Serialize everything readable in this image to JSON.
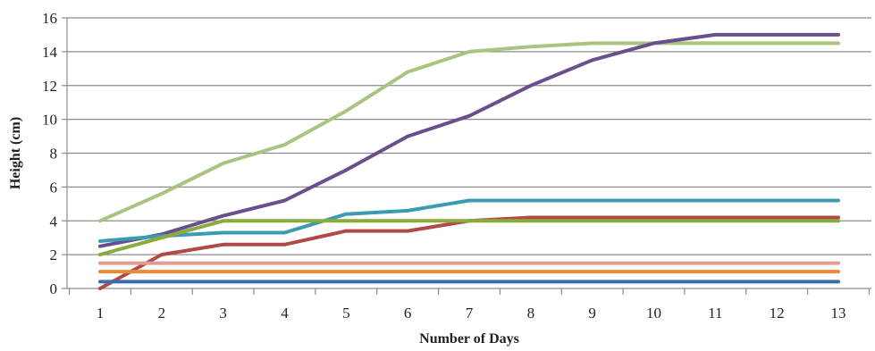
{
  "chart_data": {
    "type": "line",
    "title": "",
    "xlabel": "Number of Days",
    "ylabel": "Height (cm)",
    "xlim": [
      1,
      13
    ],
    "ylim": [
      0,
      16
    ],
    "x_ticks": [
      "1",
      "2",
      "3",
      "4",
      "5",
      "6",
      "7",
      "8",
      "9",
      "10",
      "11",
      "12",
      "13"
    ],
    "y_ticks": [
      "0",
      "2",
      "4",
      "6",
      "8",
      "10",
      "12",
      "14",
      "16"
    ],
    "grid": "horizontal",
    "legend": "none",
    "x": [
      1,
      2,
      3,
      4,
      5,
      6,
      7,
      8,
      9,
      10,
      11,
      12,
      13
    ],
    "series": [
      {
        "color": "#a9c47f",
        "values": [
          4.0,
          5.6,
          7.4,
          8.5,
          10.5,
          12.8,
          14.0,
          14.3,
          14.5,
          14.5,
          14.5,
          14.5,
          14.5
        ]
      },
      {
        "color": "#6a4f8f",
        "values": [
          2.5,
          3.2,
          4.3,
          5.2,
          7.0,
          9.0,
          10.2,
          12.0,
          13.5,
          14.5,
          15.0,
          15.0,
          15.0
        ]
      },
      {
        "color": "#3b9bb0",
        "values": [
          2.8,
          3.1,
          3.3,
          3.3,
          4.4,
          4.6,
          5.2,
          5.2,
          5.2,
          5.2,
          5.2,
          5.2,
          5.2
        ]
      },
      {
        "color": "#b04a46",
        "values": [
          0.0,
          2.0,
          2.6,
          2.6,
          3.4,
          3.4,
          4.0,
          4.2,
          4.2,
          4.2,
          4.2,
          4.2,
          4.2
        ]
      },
      {
        "color": "#8aab3e",
        "values": [
          2.0,
          3.0,
          4.0,
          4.0,
          4.0,
          4.0,
          4.0,
          4.0,
          4.0,
          4.0,
          4.0,
          4.0,
          4.0
        ]
      },
      {
        "color": "#e29a94",
        "values": [
          1.5,
          1.5,
          1.5,
          1.5,
          1.5,
          1.5,
          1.5,
          1.5,
          1.5,
          1.5,
          1.5,
          1.5,
          1.5
        ]
      },
      {
        "color": "#e88a3c",
        "values": [
          1.0,
          1.0,
          1.0,
          1.0,
          1.0,
          1.0,
          1.0,
          1.0,
          1.0,
          1.0,
          1.0,
          1.0,
          1.0
        ]
      },
      {
        "color": "#3a6ea8",
        "values": [
          0.4,
          0.4,
          0.4,
          0.4,
          0.4,
          0.4,
          0.4,
          0.4,
          0.4,
          0.4,
          0.4,
          0.4,
          0.4
        ]
      }
    ]
  }
}
